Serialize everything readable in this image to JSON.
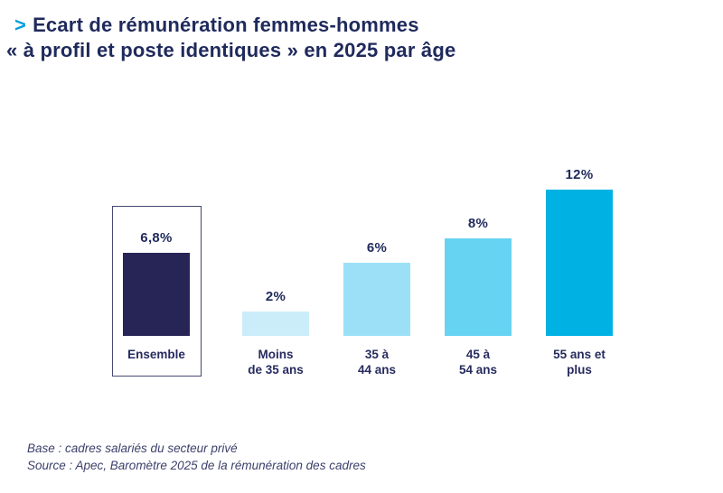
{
  "title": {
    "chevron": ">",
    "line1": "Ecart de rémunération femmes-hommes",
    "line2": "« à profil et poste identiques » en 2025 par âge"
  },
  "chart_data": {
    "type": "bar",
    "title": "Ecart de rémunération femmes-hommes « à profil et poste identiques » en 2025 par âge",
    "unit": "%",
    "categories": [
      "Ensemble",
      "Moins de 35 ans",
      "35 à 44 ans",
      "45 à 54 ans",
      "55 ans et plus"
    ],
    "category_lines": [
      "Ensemble",
      "Moins\nde 35 ans",
      "35 à\n44 ans",
      "45 à\n54 ans",
      "55 ans et\nplus"
    ],
    "slugs": [
      "ensemble",
      "moins-de-35-ans",
      "35-a-44-ans",
      "45-a-54-ans",
      "55-ans-et-plus"
    ],
    "values": [
      6.8,
      2,
      6,
      8,
      12
    ],
    "value_labels": [
      "6,8%",
      "2%",
      "6%",
      "8%",
      "12%"
    ],
    "bar_colors": [
      "#272456",
      "#cbedf9",
      "#9be0f7",
      "#67d3f2",
      "#00b2e3"
    ],
    "highlight_box_index": 0,
    "ylim": [
      0,
      13
    ],
    "grid": false,
    "legend": "none",
    "xlabel": "",
    "ylabel": ""
  },
  "footer": {
    "base": "Base : cadres salariés du secteur privé",
    "source": "Source : Apec, Baromètre 2025 de la rémunération des cadres"
  },
  "colors": {
    "title_navy": "#1f2a5c",
    "accent_cyan": "#009edb",
    "box_border": "#474a73",
    "footer_text": "#3c406b",
    "background": "#ffffff"
  }
}
